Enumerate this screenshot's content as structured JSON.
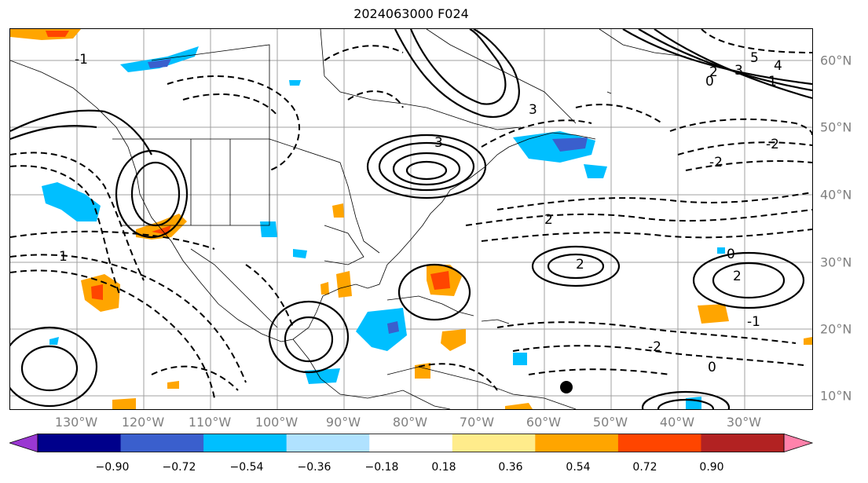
{
  "title": "2024063000 F024",
  "map": {
    "lon_labels": [
      "130°W",
      "120°W",
      "110°W",
      "100°W",
      "90°W",
      "80°W",
      "70°W",
      "60°W",
      "50°W",
      "40°W",
      "30°W"
    ],
    "lat_labels": [
      "60°N",
      "50°N",
      "40°N",
      "30°N",
      "20°N",
      "10°N"
    ],
    "contour_labels": [
      "5",
      "4",
      "3",
      "2",
      "1",
      "0",
      "-2",
      "-2",
      "2",
      "2",
      "3",
      "3",
      "2",
      "0",
      "-2",
      "-1",
      "1",
      "0",
      "-1"
    ],
    "marker": "black-dot"
  },
  "colorbar": {
    "ticks": [
      "−0.90",
      "−0.72",
      "−0.54",
      "−0.36",
      "−0.18",
      "0.18",
      "0.36",
      "0.54",
      "0.72",
      "0.90"
    ],
    "colors": [
      "#9a38d2",
      "#00008b",
      "#3a5fcd",
      "#00bfff",
      "#b0e2ff",
      "#ffffff",
      "#ffec8b",
      "#ffa500",
      "#ff4500",
      "#b22222",
      "#ff82ab"
    ]
  }
}
